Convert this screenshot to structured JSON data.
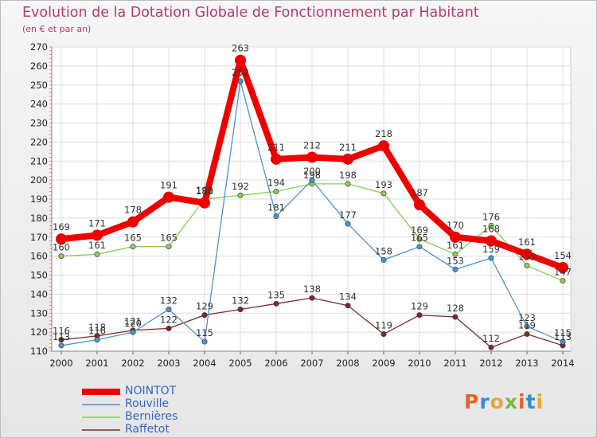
{
  "header": {
    "title": "Evolution de la Dotation Globale de Fonctionnement par Habitant",
    "subtitle": "(en € et par an)"
  },
  "logo": {
    "text": "Proxiti",
    "colors": [
      "#e8622a",
      "#2e8fd6",
      "#f0a52c",
      "#7cb83c",
      "#e8622a",
      "#2e8fd6",
      "#f0a52c"
    ]
  },
  "chart_data": {
    "type": "line",
    "x": [
      "2000",
      "2001",
      "2002",
      "2003",
      "2004",
      "2005",
      "2006",
      "2007",
      "2008",
      "2009",
      "2010",
      "2011",
      "2012",
      "2013",
      "2014"
    ],
    "ylim": [
      110,
      270
    ],
    "yticks": [
      110,
      120,
      130,
      140,
      150,
      160,
      170,
      180,
      190,
      200,
      210,
      220,
      230,
      240,
      250,
      260,
      270
    ],
    "grid": true,
    "legend_position": "bottom-left",
    "series": [
      {
        "name": "NOINTOT",
        "color": "#ee0000",
        "values": [
          169,
          171,
          178,
          191,
          188,
          263,
          211,
          212,
          211,
          218,
          187,
          170,
          168,
          161,
          154
        ],
        "labels": [
          "169",
          "171",
          "178",
          "191",
          "188",
          "263",
          "211",
          "212",
          "211",
          "218",
          "187",
          "170",
          "168",
          "161",
          "154"
        ]
      },
      {
        "name": "Rouville",
        "color": "#4d93cc",
        "values": [
          113,
          116,
          120,
          132,
          115,
          252,
          181,
          200,
          177,
          158,
          165,
          153,
          159,
          123,
          115
        ],
        "labels": [
          "113",
          "116",
          "120",
          "132",
          "115",
          "252",
          "181",
          "200",
          "177",
          "158",
          "165",
          "153",
          "159",
          "123",
          "115"
        ]
      },
      {
        "name": "Bernières",
        "color": "#88cc55",
        "values": [
          160,
          161,
          165,
          165,
          190,
          192,
          194,
          198,
          198,
          193,
          169,
          161,
          176,
          155,
          147
        ],
        "labels": [
          "160",
          "161",
          "165",
          "165",
          "190",
          "192",
          "194",
          "198",
          "198",
          "193",
          "169",
          "161",
          "176",
          "155",
          "147"
        ]
      },
      {
        "name": "Raffetot",
        "color": "#7a2b2b",
        "values": [
          116,
          118,
          121,
          122,
          129,
          132,
          135,
          138,
          134,
          119,
          129,
          128,
          112,
          119,
          113
        ],
        "labels": [
          "116",
          "118",
          "121",
          "122",
          "129",
          "132",
          "135",
          "138",
          "134",
          "119",
          "129",
          "128",
          "112",
          "119",
          "113"
        ]
      }
    ]
  }
}
